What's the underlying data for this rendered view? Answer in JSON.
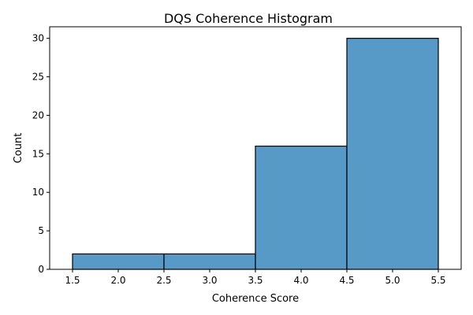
{
  "chart_data": {
    "type": "bar",
    "title": "DQS Coherence Histogram",
    "xlabel": "Coherence Score",
    "ylabel": "Count",
    "xlim": [
      1.25,
      5.75
    ],
    "ylim": [
      0,
      31.5
    ],
    "bins": [
      {
        "start": 1.5,
        "end": 2.5,
        "count": 2
      },
      {
        "start": 2.5,
        "end": 3.5,
        "count": 2
      },
      {
        "start": 3.5,
        "end": 4.5,
        "count": 16
      },
      {
        "start": 4.5,
        "end": 5.5,
        "count": 30
      }
    ],
    "xticks": [
      1.5,
      2.0,
      2.5,
      3.0,
      3.5,
      4.0,
      4.5,
      5.0,
      5.5
    ],
    "xtick_labels": [
      "1.5",
      "2.0",
      "2.5",
      "3.0",
      "3.5",
      "4.0",
      "4.5",
      "5.0",
      "5.5"
    ],
    "yticks": [
      0,
      5,
      10,
      15,
      20,
      25,
      30
    ],
    "ytick_labels": [
      "0",
      "5",
      "10",
      "15",
      "20",
      "25",
      "30"
    ],
    "grid": false,
    "legend": "none",
    "colors": {
      "bar_fill": "#5799c7",
      "bar_edge": "#000000"
    }
  }
}
